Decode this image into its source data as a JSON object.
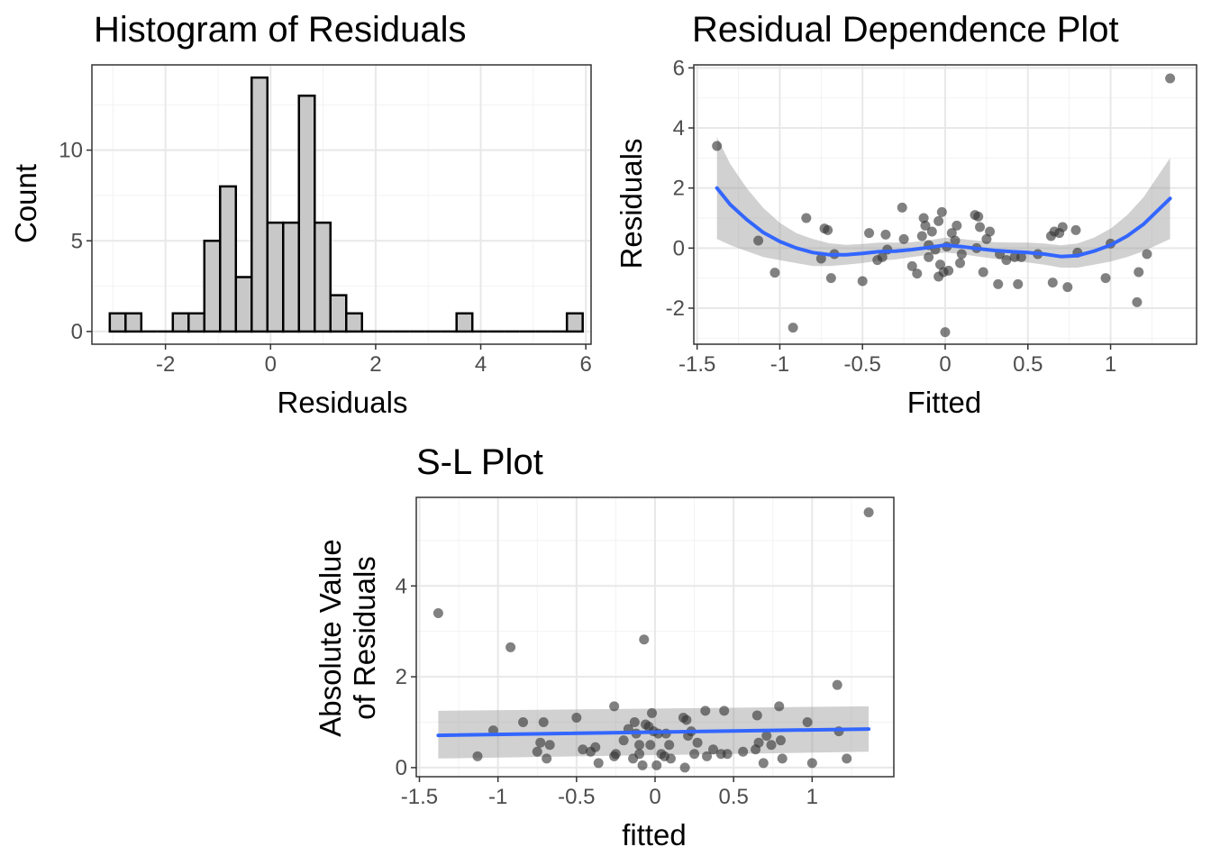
{
  "chart_data": [
    {
      "type": "histogram",
      "title": "Histogram of Residuals",
      "xlabel": "Residuals",
      "ylabel": "Count",
      "xlim": [
        -3.4,
        6.1
      ],
      "ylim": [
        -0.7,
        14.7
      ],
      "xticks": [
        -2,
        0,
        2,
        4,
        6
      ],
      "yticks": [
        0,
        5,
        10
      ],
      "bin_start": -3.06,
      "bin_width": 0.3,
      "counts": [
        1,
        1,
        0,
        0,
        1,
        1,
        5,
        8,
        3,
        14,
        6,
        6,
        13,
        6,
        2,
        1,
        0,
        0,
        0,
        0,
        0,
        0,
        1,
        0,
        0,
        0,
        0,
        0,
        0,
        1
      ],
      "fill_color": "#c8c8c8",
      "grid": true
    },
    {
      "type": "scatter",
      "title": "Residual Dependence Plot",
      "xlabel": "Fitted",
      "ylabel": "Residuals",
      "xlim": [
        -1.52,
        1.52
      ],
      "ylim": [
        -3.2,
        6.1
      ],
      "xticks": [
        -1.5,
        -1.0,
        -0.5,
        0.0,
        0.5,
        1.0
      ],
      "yticks": [
        -2,
        0,
        2,
        4,
        6
      ],
      "points": [
        [
          -1.38,
          3.4
        ],
        [
          -1.13,
          0.25
        ],
        [
          -1.03,
          -0.82
        ],
        [
          -0.92,
          -2.65
        ],
        [
          -0.84,
          1.0
        ],
        [
          -0.75,
          -0.35
        ],
        [
          -0.73,
          0.65
        ],
        [
          -0.71,
          0.6
        ],
        [
          -0.69,
          -1.0
        ],
        [
          -0.67,
          -0.2
        ],
        [
          -0.5,
          -1.1
        ],
        [
          -0.46,
          0.5
        ],
        [
          -0.41,
          -0.4
        ],
        [
          -0.38,
          -0.3
        ],
        [
          -0.36,
          0.45
        ],
        [
          -0.35,
          -0.05
        ],
        [
          -0.26,
          1.35
        ],
        [
          -0.25,
          0.3
        ],
        [
          -0.2,
          -0.6
        ],
        [
          -0.17,
          -0.85
        ],
        [
          -0.14,
          0.4
        ],
        [
          -0.13,
          1.0
        ],
        [
          -0.12,
          0.75
        ],
        [
          -0.1,
          0.1
        ],
        [
          -0.1,
          -0.3
        ],
        [
          -0.08,
          0.55
        ],
        [
          -0.06,
          -0.05
        ],
        [
          -0.04,
          -0.95
        ],
        [
          -0.04,
          0.9
        ],
        [
          -0.03,
          -0.55
        ],
        [
          -0.02,
          1.2
        ],
        [
          -0.01,
          -0.8
        ],
        [
          0.0,
          -2.8
        ],
        [
          0.01,
          0.05
        ],
        [
          0.02,
          -0.75
        ],
        [
          0.04,
          0.5
        ],
        [
          0.06,
          0.25
        ],
        [
          0.07,
          0.75
        ],
        [
          0.09,
          -0.5
        ],
        [
          0.1,
          -0.2
        ],
        [
          0.18,
          1.1
        ],
        [
          0.19,
          0.0
        ],
        [
          0.2,
          1.05
        ],
        [
          0.21,
          0.7
        ],
        [
          0.23,
          -0.8
        ],
        [
          0.25,
          0.3
        ],
        [
          0.27,
          0.55
        ],
        [
          0.32,
          -1.2
        ],
        [
          0.33,
          -0.2
        ],
        [
          0.37,
          -0.4
        ],
        [
          0.42,
          -0.3
        ],
        [
          0.44,
          -1.2
        ],
        [
          0.46,
          -0.3
        ],
        [
          0.56,
          -0.2
        ],
        [
          0.64,
          0.4
        ],
        [
          0.65,
          -1.15
        ],
        [
          0.66,
          0.55
        ],
        [
          0.69,
          0.5
        ],
        [
          0.71,
          0.7
        ],
        [
          0.74,
          -1.3
        ],
        [
          0.79,
          0.6
        ],
        [
          0.8,
          -0.15
        ],
        [
          0.97,
          -1.0
        ],
        [
          1.0,
          0.15
        ],
        [
          1.16,
          -1.8
        ],
        [
          1.17,
          -0.8
        ],
        [
          1.22,
          -0.2
        ],
        [
          1.36,
          5.65
        ]
      ],
      "smooth": {
        "x": [
          -1.38,
          -1.3,
          -1.2,
          -1.1,
          -1.0,
          -0.9,
          -0.8,
          -0.7,
          -0.6,
          -0.5,
          -0.4,
          -0.3,
          -0.2,
          -0.1,
          0.0,
          0.1,
          0.2,
          0.3,
          0.4,
          0.5,
          0.6,
          0.7,
          0.8,
          0.9,
          1.0,
          1.1,
          1.2,
          1.36
        ],
        "y": [
          2.0,
          1.45,
          0.95,
          0.52,
          0.22,
          0.0,
          -0.15,
          -0.22,
          -0.22,
          -0.18,
          -0.12,
          -0.1,
          -0.05,
          0.02,
          0.1,
          0.05,
          -0.02,
          -0.08,
          -0.12,
          -0.15,
          -0.2,
          -0.28,
          -0.25,
          -0.1,
          0.1,
          0.4,
          0.8,
          1.65
        ],
        "ci_lower": [
          0.3,
          0.1,
          -0.1,
          -0.3,
          -0.4,
          -0.5,
          -0.6,
          -0.6,
          -0.55,
          -0.5,
          -0.42,
          -0.38,
          -0.3,
          -0.22,
          -0.15,
          -0.2,
          -0.28,
          -0.36,
          -0.42,
          -0.48,
          -0.55,
          -0.65,
          -0.65,
          -0.55,
          -0.45,
          -0.3,
          -0.1,
          0.3
        ],
        "ci_upper": [
          3.7,
          2.8,
          2.0,
          1.34,
          0.84,
          0.5,
          0.3,
          0.16,
          0.11,
          0.14,
          0.18,
          0.18,
          0.2,
          0.26,
          0.35,
          0.3,
          0.24,
          0.2,
          0.18,
          0.18,
          0.15,
          0.09,
          0.15,
          0.35,
          0.65,
          1.1,
          1.7,
          3.0
        ]
      },
      "point_color": "#333333",
      "line_color": "#3366ff",
      "grid": true
    },
    {
      "type": "scatter",
      "title": "S-L Plot",
      "xlabel": "fitted",
      "ylabel_lines": [
        "Absolute Value",
        "of Residuals"
      ],
      "xlim": [
        -1.52,
        1.52
      ],
      "ylim": [
        -0.2,
        5.95
      ],
      "xticks": [
        -1.5,
        -1.0,
        -0.5,
        0.0,
        0.5,
        1.0
      ],
      "yticks": [
        0,
        2,
        4
      ],
      "points": [
        [
          -1.38,
          3.4
        ],
        [
          -1.13,
          0.25
        ],
        [
          -1.03,
          0.82
        ],
        [
          -0.92,
          2.65
        ],
        [
          -0.84,
          1.0
        ],
        [
          -0.75,
          0.35
        ],
        [
          -0.73,
          0.55
        ],
        [
          -0.71,
          1.0
        ],
        [
          -0.69,
          0.2
        ],
        [
          -0.67,
          0.5
        ],
        [
          -0.5,
          1.1
        ],
        [
          -0.46,
          0.4
        ],
        [
          -0.41,
          0.35
        ],
        [
          -0.38,
          0.45
        ],
        [
          -0.36,
          0.1
        ],
        [
          -0.26,
          0.25
        ],
        [
          -0.25,
          0.3
        ],
        [
          -0.26,
          1.35
        ],
        [
          -0.2,
          0.6
        ],
        [
          -0.17,
          0.85
        ],
        [
          -0.14,
          0.2
        ],
        [
          -0.13,
          1.0
        ],
        [
          -0.12,
          0.75
        ],
        [
          -0.1,
          0.5
        ],
        [
          -0.1,
          0.3
        ],
        [
          -0.08,
          0.05
        ],
        [
          -0.06,
          0.95
        ],
        [
          -0.04,
          0.9
        ],
        [
          -0.03,
          0.5
        ],
        [
          -0.02,
          1.2
        ],
        [
          -0.01,
          0.8
        ],
        [
          -0.07,
          2.82
        ],
        [
          0.01,
          0.05
        ],
        [
          0.02,
          0.75
        ],
        [
          0.04,
          0.3
        ],
        [
          0.06,
          0.25
        ],
        [
          0.07,
          0.75
        ],
        [
          0.09,
          0.5
        ],
        [
          0.1,
          0.2
        ],
        [
          0.18,
          1.1
        ],
        [
          0.19,
          0.0
        ],
        [
          0.2,
          1.05
        ],
        [
          0.21,
          0.7
        ],
        [
          0.23,
          0.8
        ],
        [
          0.25,
          0.3
        ],
        [
          0.27,
          0.55
        ],
        [
          0.32,
          1.25
        ],
        [
          0.33,
          0.25
        ],
        [
          0.37,
          0.4
        ],
        [
          0.42,
          0.3
        ],
        [
          0.44,
          1.25
        ],
        [
          0.46,
          0.3
        ],
        [
          0.56,
          0.35
        ],
        [
          0.64,
          0.4
        ],
        [
          0.65,
          1.15
        ],
        [
          0.66,
          0.55
        ],
        [
          0.69,
          0.1
        ],
        [
          0.71,
          0.7
        ],
        [
          0.74,
          0.5
        ],
        [
          0.79,
          1.35
        ],
        [
          0.8,
          0.6
        ],
        [
          0.81,
          0.2
        ],
        [
          0.97,
          1.0
        ],
        [
          1.0,
          0.1
        ],
        [
          1.16,
          1.82
        ],
        [
          1.17,
          0.8
        ],
        [
          1.22,
          0.2
        ],
        [
          1.36,
          5.62
        ]
      ],
      "smooth": {
        "x": [
          -1.38,
          1.36
        ],
        "y": [
          0.71,
          0.85
        ],
        "ci_lower": [
          0.2,
          0.35
        ],
        "ci_upper": [
          1.25,
          1.35
        ]
      },
      "point_color": "#333333",
      "line_color": "#3366ff",
      "grid": true
    }
  ]
}
